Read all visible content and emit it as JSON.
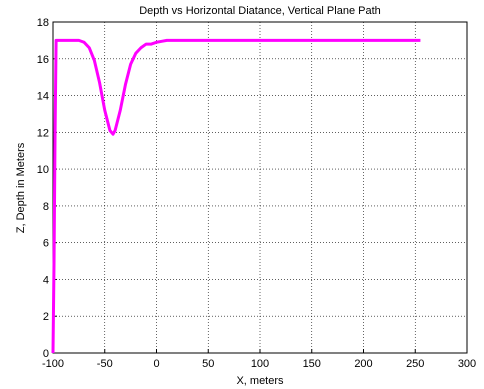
{
  "chart_data": {
    "type": "line",
    "title": "Depth vs Horizontal Diatance, Vertical Plane Path",
    "x_label": "X, meters",
    "y_label": "Z, Depth in Meters",
    "x": [
      -100,
      -99,
      -98,
      -97,
      -95,
      -90,
      -80,
      -75,
      -70,
      -65,
      -60,
      -55,
      -50,
      -45,
      -42,
      -40,
      -35,
      -30,
      -25,
      -20,
      -15,
      -10,
      -5,
      0,
      5,
      10,
      20,
      50,
      100,
      150,
      200,
      255
    ],
    "series": [
      {
        "color": "#ff00ff",
        "values": [
          0,
          5,
          12,
          17,
          17,
          17,
          17,
          17,
          16.9,
          16.6,
          15.9,
          14.7,
          13.2,
          12.1,
          11.9,
          12.1,
          13.2,
          14.6,
          15.7,
          16.3,
          16.6,
          16.8,
          16.8,
          16.9,
          16.95,
          17,
          17,
          17,
          17,
          17,
          17,
          17
        ]
      }
    ],
    "xlim": [
      -100,
      300
    ],
    "ylim": [
      0,
      18
    ],
    "xticks": [
      -100,
      -50,
      0,
      50,
      100,
      150,
      200,
      250,
      300
    ],
    "yticks": [
      0,
      2,
      4,
      6,
      8,
      10,
      12,
      14,
      16,
      18
    ],
    "grid": true
  }
}
